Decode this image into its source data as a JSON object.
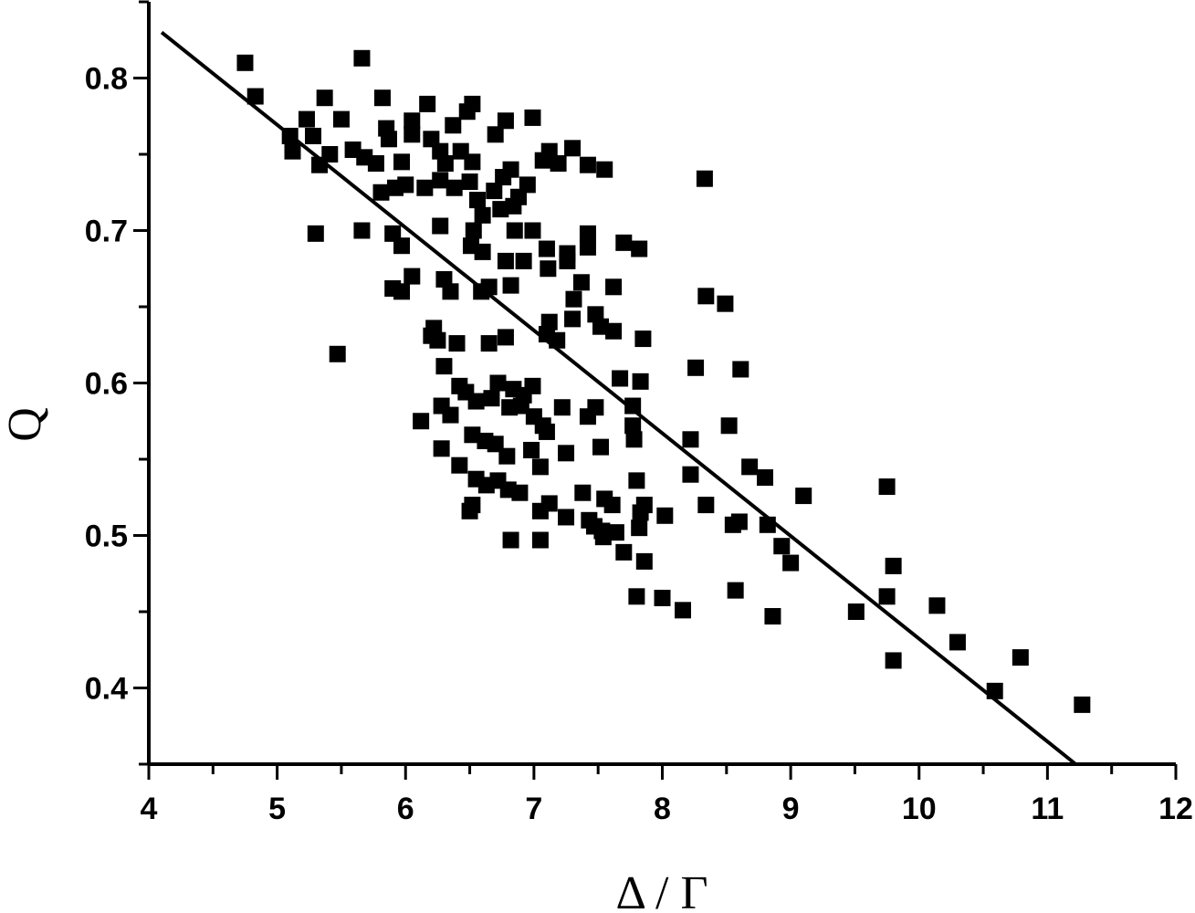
{
  "chart_data": {
    "type": "scatter",
    "xlabel": "Δ / Γ",
    "ylabel": "Q",
    "xlim": [
      4,
      12
    ],
    "ylim": [
      0.35,
      0.85
    ],
    "x_ticks": [
      "4",
      "5",
      "6",
      "7",
      "8",
      "9",
      "10",
      "11",
      "12"
    ],
    "y_ticks": [
      "0.4",
      "0.5",
      "0.6",
      "0.7",
      "0.8"
    ],
    "grid": false,
    "marker": "square",
    "marker_color": "#000000",
    "series": [
      {
        "type": "scatter",
        "points": [
          [
            4.75,
            0.81
          ],
          [
            4.83,
            0.788
          ],
          [
            5.66,
            0.813
          ],
          [
            5.37,
            0.787
          ],
          [
            5.82,
            0.787
          ],
          [
            6.17,
            0.783
          ],
          [
            6.52,
            0.783
          ],
          [
            6.99,
            0.774
          ],
          [
            6.78,
            0.772
          ],
          [
            5.5,
            0.773
          ],
          [
            5.23,
            0.773
          ],
          [
            6.05,
            0.772
          ],
          [
            6.37,
            0.769
          ],
          [
            6.48,
            0.778
          ],
          [
            5.85,
            0.767
          ],
          [
            5.1,
            0.762
          ],
          [
            5.28,
            0.762
          ],
          [
            5.59,
            0.753
          ],
          [
            5.12,
            0.752
          ],
          [
            5.41,
            0.75
          ],
          [
            5.68,
            0.748
          ],
          [
            5.77,
            0.744
          ],
          [
            5.87,
            0.76
          ],
          [
            5.97,
            0.745
          ],
          [
            6.05,
            0.763
          ],
          [
            6.2,
            0.76
          ],
          [
            6.27,
            0.752
          ],
          [
            6.43,
            0.752
          ],
          [
            6.52,
            0.745
          ],
          [
            6.7,
            0.763
          ],
          [
            5.33,
            0.743
          ],
          [
            5.92,
            0.728
          ],
          [
            6.31,
            0.744
          ],
          [
            7.07,
            0.746
          ],
          [
            7.12,
            0.752
          ],
          [
            7.19,
            0.744
          ],
          [
            7.3,
            0.754
          ],
          [
            7.42,
            0.743
          ],
          [
            7.55,
            0.74
          ],
          [
            8.33,
            0.734
          ],
          [
            5.81,
            0.725
          ],
          [
            6.0,
            0.73
          ],
          [
            6.15,
            0.728
          ],
          [
            6.27,
            0.733
          ],
          [
            6.38,
            0.728
          ],
          [
            6.5,
            0.732
          ],
          [
            6.56,
            0.72
          ],
          [
            6.69,
            0.726
          ],
          [
            6.76,
            0.735
          ],
          [
            6.82,
            0.74
          ],
          [
            6.88,
            0.722
          ],
          [
            6.95,
            0.73
          ],
          [
            6.6,
            0.71
          ],
          [
            6.74,
            0.714
          ],
          [
            6.84,
            0.716
          ],
          [
            6.27,
            0.703
          ],
          [
            6.53,
            0.7
          ],
          [
            6.85,
            0.7
          ],
          [
            6.99,
            0.7
          ],
          [
            5.3,
            0.698
          ],
          [
            5.66,
            0.7
          ],
          [
            5.9,
            0.698
          ],
          [
            5.97,
            0.69
          ],
          [
            7.42,
            0.698
          ],
          [
            7.7,
            0.692
          ],
          [
            7.82,
            0.688
          ],
          [
            6.51,
            0.69
          ],
          [
            6.6,
            0.686
          ],
          [
            7.1,
            0.688
          ],
          [
            7.26,
            0.685
          ],
          [
            7.42,
            0.689
          ],
          [
            6.78,
            0.68
          ],
          [
            6.92,
            0.68
          ],
          [
            7.11,
            0.675
          ],
          [
            7.26,
            0.68
          ],
          [
            6.05,
            0.67
          ],
          [
            6.3,
            0.668
          ],
          [
            6.65,
            0.663
          ],
          [
            6.82,
            0.664
          ],
          [
            5.9,
            0.662
          ],
          [
            5.97,
            0.66
          ],
          [
            6.35,
            0.66
          ],
          [
            6.59,
            0.66
          ],
          [
            7.31,
            0.655
          ],
          [
            7.37,
            0.666
          ],
          [
            7.62,
            0.663
          ],
          [
            8.34,
            0.657
          ],
          [
            8.49,
            0.652
          ],
          [
            7.48,
            0.645
          ],
          [
            7.12,
            0.64
          ],
          [
            7.3,
            0.642
          ],
          [
            7.52,
            0.637
          ],
          [
            7.62,
            0.634
          ],
          [
            6.22,
            0.636
          ],
          [
            6.2,
            0.631
          ],
          [
            6.25,
            0.628
          ],
          [
            6.4,
            0.626
          ],
          [
            6.65,
            0.626
          ],
          [
            6.78,
            0.63
          ],
          [
            7.1,
            0.632
          ],
          [
            7.18,
            0.628
          ],
          [
            7.85,
            0.629
          ],
          [
            5.47,
            0.619
          ],
          [
            8.26,
            0.61
          ],
          [
            8.61,
            0.609
          ],
          [
            6.3,
            0.611
          ],
          [
            7.67,
            0.603
          ],
          [
            7.83,
            0.601
          ],
          [
            6.42,
            0.598
          ],
          [
            6.47,
            0.594
          ],
          [
            6.72,
            0.6
          ],
          [
            6.84,
            0.596
          ],
          [
            6.92,
            0.592
          ],
          [
            6.99,
            0.598
          ],
          [
            6.55,
            0.588
          ],
          [
            6.67,
            0.59
          ],
          [
            6.81,
            0.584
          ],
          [
            6.9,
            0.585
          ],
          [
            7.0,
            0.578
          ],
          [
            7.22,
            0.584
          ],
          [
            7.48,
            0.584
          ],
          [
            7.77,
            0.585
          ],
          [
            6.28,
            0.585
          ],
          [
            6.35,
            0.579
          ],
          [
            6.12,
            0.575
          ],
          [
            7.07,
            0.572
          ],
          [
            7.1,
            0.568
          ],
          [
            7.42,
            0.578
          ],
          [
            7.77,
            0.572
          ],
          [
            7.78,
            0.563
          ],
          [
            8.22,
            0.563
          ],
          [
            8.52,
            0.572
          ],
          [
            6.52,
            0.566
          ],
          [
            6.62,
            0.562
          ],
          [
            6.7,
            0.56
          ],
          [
            6.79,
            0.552
          ],
          [
            6.98,
            0.556
          ],
          [
            7.05,
            0.545
          ],
          [
            7.25,
            0.554
          ],
          [
            7.52,
            0.558
          ],
          [
            6.28,
            0.557
          ],
          [
            6.42,
            0.546
          ],
          [
            7.8,
            0.536
          ],
          [
            8.22,
            0.54
          ],
          [
            8.68,
            0.545
          ],
          [
            8.8,
            0.538
          ],
          [
            6.55,
            0.537
          ],
          [
            6.63,
            0.533
          ],
          [
            6.72,
            0.536
          ],
          [
            6.8,
            0.53
          ],
          [
            6.89,
            0.528
          ],
          [
            7.38,
            0.528
          ],
          [
            7.55,
            0.524
          ],
          [
            7.61,
            0.52
          ],
          [
            7.83,
            0.515
          ],
          [
            7.86,
            0.52
          ],
          [
            9.1,
            0.526
          ],
          [
            9.75,
            0.532
          ],
          [
            6.5,
            0.516
          ],
          [
            6.52,
            0.52
          ],
          [
            7.05,
            0.516
          ],
          [
            7.12,
            0.521
          ],
          [
            7.25,
            0.512
          ],
          [
            7.43,
            0.51
          ],
          [
            7.47,
            0.506
          ],
          [
            7.53,
            0.503
          ],
          [
            7.64,
            0.502
          ],
          [
            7.82,
            0.505
          ],
          [
            8.02,
            0.513
          ],
          [
            8.34,
            0.52
          ],
          [
            8.55,
            0.507
          ],
          [
            8.6,
            0.509
          ],
          [
            8.82,
            0.507
          ],
          [
            6.82,
            0.497
          ],
          [
            7.05,
            0.497
          ],
          [
            7.54,
            0.499
          ],
          [
            7.7,
            0.489
          ],
          [
            7.86,
            0.483
          ],
          [
            8.93,
            0.493
          ],
          [
            9.0,
            0.482
          ],
          [
            9.8,
            0.48
          ],
          [
            7.8,
            0.46
          ],
          [
            8.0,
            0.459
          ],
          [
            8.16,
            0.451
          ],
          [
            8.57,
            0.464
          ],
          [
            8.86,
            0.447
          ],
          [
            9.51,
            0.45
          ],
          [
            9.75,
            0.46
          ],
          [
            10.14,
            0.454
          ],
          [
            10.3,
            0.43
          ],
          [
            9.8,
            0.418
          ],
          [
            10.79,
            0.42
          ],
          [
            10.59,
            0.398
          ],
          [
            11.27,
            0.389
          ]
        ]
      },
      {
        "type": "line",
        "x": [
          4.1,
          11.22
        ],
        "y": [
          0.83,
          0.35
        ]
      }
    ]
  }
}
